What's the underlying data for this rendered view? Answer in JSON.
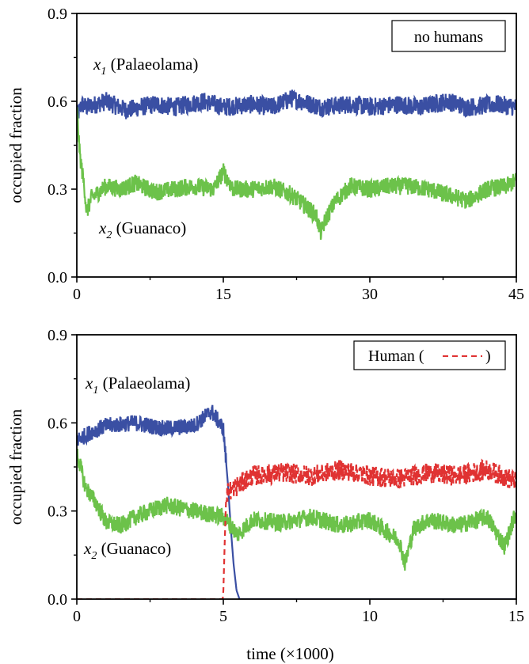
{
  "chart_data": [
    {
      "type": "line",
      "panel": "top",
      "legend_box": "no humans",
      "legend_position": "top-right",
      "ylabel": "occupied fraction",
      "xlabel": "",
      "xlim": [
        0,
        45
      ],
      "ylim": [
        0,
        0.9
      ],
      "xticks": [
        "0",
        "15",
        "30",
        "45"
      ],
      "xtick_values": [
        0,
        15,
        30,
        45
      ],
      "yticks": [
        "0.0",
        "0.3",
        "0.6",
        "0.9"
      ],
      "ytick_values": [
        0,
        0.3,
        0.6,
        0.9
      ],
      "grid": false,
      "series": [
        {
          "name": "x1 (Palaeolama)",
          "label_var": "x",
          "label_sub": "1",
          "label_rest": " (Palaeolama)",
          "color": "#3a4fa3",
          "style": "solid",
          "points": [
            [
              0,
              0.58
            ],
            [
              0.05,
              0.55
            ],
            [
              0.5,
              0.59
            ],
            [
              1,
              0.58
            ],
            [
              3,
              0.6
            ],
            [
              5,
              0.57
            ],
            [
              8,
              0.59
            ],
            [
              10,
              0.58
            ],
            [
              13,
              0.6
            ],
            [
              15,
              0.58
            ],
            [
              18,
              0.59
            ],
            [
              20,
              0.58
            ],
            [
              22,
              0.61
            ],
            [
              25,
              0.58
            ],
            [
              28,
              0.59
            ],
            [
              30,
              0.58
            ],
            [
              33,
              0.59
            ],
            [
              35,
              0.58
            ],
            [
              38,
              0.6
            ],
            [
              40,
              0.58
            ],
            [
              43,
              0.59
            ],
            [
              45,
              0.58
            ]
          ],
          "noise": 0.032
        },
        {
          "name": "x2 (Guanaco)",
          "label_var": "x",
          "label_sub": "2",
          "label_rest": " (Guanaco)",
          "color": "#6cc24a",
          "style": "solid",
          "points": [
            [
              0,
              0.58
            ],
            [
              0.3,
              0.42
            ],
            [
              0.8,
              0.3
            ],
            [
              1,
              0.22
            ],
            [
              1.5,
              0.27
            ],
            [
              3,
              0.31
            ],
            [
              4.5,
              0.3
            ],
            [
              6,
              0.32
            ],
            [
              8,
              0.29
            ],
            [
              10,
              0.3
            ],
            [
              12,
              0.31
            ],
            [
              14,
              0.3
            ],
            [
              15,
              0.36
            ],
            [
              16,
              0.3
            ],
            [
              18,
              0.3
            ],
            [
              20,
              0.31
            ],
            [
              22,
              0.28
            ],
            [
              23.5,
              0.24
            ],
            [
              24.5,
              0.21
            ],
            [
              25,
              0.15
            ],
            [
              25.5,
              0.2
            ],
            [
              26.5,
              0.26
            ],
            [
              28,
              0.31
            ],
            [
              30,
              0.3
            ],
            [
              32,
              0.31
            ],
            [
              34,
              0.31
            ],
            [
              36,
              0.3
            ],
            [
              38,
              0.28
            ],
            [
              40,
              0.26
            ],
            [
              42,
              0.3
            ],
            [
              44,
              0.31
            ],
            [
              45,
              0.33
            ]
          ],
          "noise": 0.03
        }
      ]
    },
    {
      "type": "line",
      "panel": "bottom",
      "legend_box": "Human (",
      "legend_box_close": ")",
      "legend_position": "top-right",
      "ylabel": "occupied fraction",
      "xlabel": "time (×1000)",
      "xlim": [
        0,
        15
      ],
      "ylim": [
        0,
        0.9
      ],
      "xticks": [
        "0",
        "5",
        "10",
        "15"
      ],
      "xtick_values": [
        0,
        5,
        10,
        15
      ],
      "yticks": [
        "0.0",
        "0.3",
        "0.6",
        "0.9"
      ],
      "ytick_values": [
        0,
        0.3,
        0.6,
        0.9
      ],
      "grid": false,
      "series": [
        {
          "name": "x1 (Palaeolama)",
          "label_var": "x",
          "label_sub": "1",
          "label_rest": " (Palaeolama)",
          "color": "#3a4fa3",
          "style": "solid",
          "points": [
            [
              0,
              0.54
            ],
            [
              0.5,
              0.57
            ],
            [
              1,
              0.59
            ],
            [
              2,
              0.6
            ],
            [
              3,
              0.58
            ],
            [
              4,
              0.59
            ],
            [
              4.6,
              0.64
            ],
            [
              5,
              0.58
            ],
            [
              5.05,
              0.52
            ],
            [
              5.15,
              0.4
            ],
            [
              5.25,
              0.25
            ],
            [
              5.35,
              0.12
            ],
            [
              5.45,
              0.03
            ],
            [
              5.55,
              0.0
            ],
            [
              15,
              0.0
            ]
          ],
          "noise": 0.028,
          "noise_until": 5.1
        },
        {
          "name": "x2 (Guanaco)",
          "label_var": "x",
          "label_sub": "2",
          "label_rest": " (Guanaco)",
          "color": "#6cc24a",
          "style": "solid",
          "points": [
            [
              0,
              0.5
            ],
            [
              0.3,
              0.38
            ],
            [
              0.7,
              0.32
            ],
            [
              1,
              0.26
            ],
            [
              1.5,
              0.25
            ],
            [
              2,
              0.28
            ],
            [
              3,
              0.32
            ],
            [
              4,
              0.3
            ],
            [
              5,
              0.28
            ],
            [
              5.5,
              0.22
            ],
            [
              6,
              0.27
            ],
            [
              7,
              0.26
            ],
            [
              8,
              0.28
            ],
            [
              9,
              0.25
            ],
            [
              10,
              0.27
            ],
            [
              11,
              0.2
            ],
            [
              11.2,
              0.12
            ],
            [
              11.5,
              0.24
            ],
            [
              12,
              0.27
            ],
            [
              13,
              0.25
            ],
            [
              14,
              0.28
            ],
            [
              14.6,
              0.18
            ],
            [
              15,
              0.3
            ]
          ],
          "noise": 0.03
        },
        {
          "name": "Human",
          "color": "#e03232",
          "style": "dashed",
          "points": [
            [
              0,
              0.0
            ],
            [
              4.98,
              0.0
            ],
            [
              5.0,
              0.02
            ],
            [
              5.05,
              0.2
            ],
            [
              5.1,
              0.36
            ],
            [
              6,
              0.42
            ],
            [
              7,
              0.43
            ],
            [
              8,
              0.42
            ],
            [
              9,
              0.44
            ],
            [
              10,
              0.42
            ],
            [
              11,
              0.41
            ],
            [
              12,
              0.43
            ],
            [
              13,
              0.42
            ],
            [
              14,
              0.44
            ],
            [
              15,
              0.4
            ]
          ],
          "noise": 0.035,
          "noise_from": 5.1
        }
      ]
    }
  ]
}
